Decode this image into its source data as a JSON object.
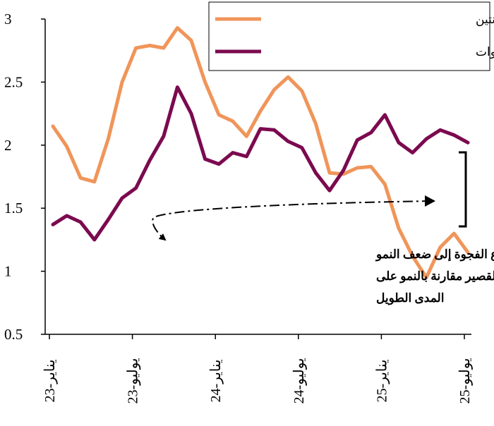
{
  "chart_data": {
    "type": "line",
    "x": [
      "2023-01",
      "2023-02",
      "2023-03",
      "2023-04",
      "2023-05",
      "2023-06",
      "2023-07",
      "2023-08",
      "2023-09",
      "2023-10",
      "2023-11",
      "2023-12",
      "2024-01",
      "2024-02",
      "2024-03",
      "2024-04",
      "2024-05",
      "2024-06",
      "2024-07",
      "2024-08",
      "2024-09",
      "2024-10",
      "2024-11",
      "2024-12",
      "2025-01",
      "2025-02",
      "2025-03",
      "2025-04",
      "2025-05",
      "2025-06",
      "2025-07"
    ],
    "x_tick_labels": [
      {
        "at": "2023-01",
        "label": "يناير-23"
      },
      {
        "at": "2023-07",
        "label": "يوليو-23"
      },
      {
        "at": "2024-01",
        "label": "يناير-24"
      },
      {
        "at": "2024-07",
        "label": "يوليو-24"
      },
      {
        "at": "2025-01",
        "label": "يناير-25"
      },
      {
        "at": "2025-07",
        "label": "يوليو-25"
      }
    ],
    "ylim": [
      0.5,
      3
    ],
    "y_ticks": [
      "0.5",
      "1",
      "1.5",
      "2",
      "2.5",
      "3"
    ],
    "series": [
      {
        "name": "العائد الحقيقي لسندات الخزانة لسنتين",
        "color": "#F0955A",
        "values": [
          2.15,
          1.99,
          1.74,
          1.71,
          2.05,
          2.5,
          2.77,
          2.79,
          2.77,
          2.93,
          2.83,
          2.5,
          2.24,
          2.19,
          2.07,
          2.27,
          2.44,
          2.54,
          2.43,
          2.17,
          1.78,
          1.77,
          1.82,
          1.83,
          1.69,
          1.34,
          1.12,
          0.95,
          1.19,
          1.3,
          1.15
        ]
      },
      {
        "name": "العائد الحقيقي لسندات الخزانة لعشر سنوات",
        "color": "#7B0A4F",
        "values": [
          1.37,
          1.44,
          1.39,
          1.25,
          1.41,
          1.58,
          1.66,
          1.88,
          2.07,
          2.46,
          2.25,
          1.89,
          1.85,
          1.94,
          1.91,
          2.13,
          2.12,
          2.03,
          1.98,
          1.78,
          1.64,
          1.8,
          2.04,
          2.1,
          2.24,
          2.02,
          1.94,
          2.05,
          2.12,
          2.08,
          2.02
        ]
      }
    ],
    "annotation": [
      "يشير اتساع الفجوة إلى ضعف النمو",
      "على المدى القصير مقارنة بالنمو على",
      "المدى الطويل"
    ],
    "legend_position": "top-right"
  }
}
